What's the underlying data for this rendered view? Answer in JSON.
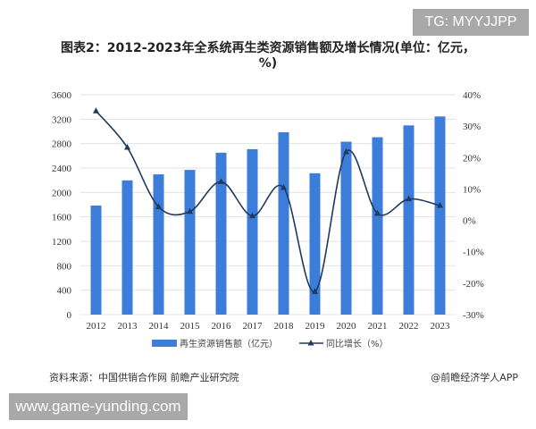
{
  "badge": "TG: MYYJJPP",
  "footer_watermark": "www.game-yunding.com",
  "source": "资料来源：中国供销合作网 前瞻产业研究院",
  "credit": "@前瞻经济学人APP",
  "chart_data": {
    "type": "bar+line",
    "title": "图表2：2012-2023年全系统再生类资源销售额及增长情况(单位：亿元，%)",
    "categories": [
      "2012",
      "2013",
      "2014",
      "2015",
      "2016",
      "2017",
      "2018",
      "2019",
      "2020",
      "2021",
      "2022",
      "2023"
    ],
    "series": [
      {
        "name": "再生资源销售额（亿元）",
        "type": "bar",
        "axis": "left",
        "color": "#3b7dd8",
        "values": [
          1785,
          2198,
          2296,
          2369,
          2651,
          2709,
          2986,
          2315,
          2831,
          2904,
          3098,
          3244
        ]
      },
      {
        "name": "同比增长（%）",
        "type": "line",
        "axis": "right",
        "color": "#1f3a5c",
        "marker": "triangle",
        "values": [
          34.8,
          23.2,
          4.3,
          2.8,
          12.3,
          1.4,
          10.4,
          -22.7,
          21.8,
          2.2,
          6.8,
          4.7
        ]
      }
    ],
    "y_left": {
      "range": [
        0,
        3600
      ],
      "ticks": [
        "0",
        "400",
        "800",
        "1200",
        "1600",
        "2000",
        "2400",
        "2800",
        "3200",
        "3600"
      ]
    },
    "y_right": {
      "range": [
        -30,
        40
      ],
      "ticks": [
        "-30%",
        "-20%",
        "-10%",
        "0%",
        "10%",
        "20%",
        "30%",
        "40%"
      ]
    },
    "grid": true,
    "legend": "bottom"
  }
}
